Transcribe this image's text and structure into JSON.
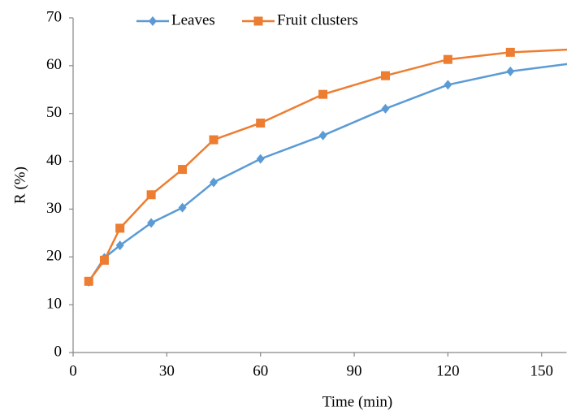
{
  "chart_data": {
    "type": "line",
    "x_label": "Time (min)",
    "y_label": "R (%)",
    "x": [
      5,
      10,
      15,
      25,
      35,
      45,
      60,
      80,
      100,
      120,
      140,
      160
    ],
    "series": [
      {
        "name": "Leaves",
        "color": "#5b9bd5",
        "marker": "diamond",
        "values": [
          14.8,
          19.8,
          22.4,
          27.1,
          30.3,
          35.6,
          40.5,
          45.4,
          51,
          56,
          58.8,
          60.5
        ]
      },
      {
        "name": "Fruit clusters",
        "color": "#ed7d31",
        "marker": "square",
        "values": [
          14.9,
          19.3,
          26,
          33,
          38.3,
          44.5,
          48,
          54,
          57.9,
          61.3,
          62.8,
          63.4
        ]
      }
    ],
    "xlim": [
      0,
      158
    ],
    "xticks": [
      0,
      30,
      60,
      90,
      120,
      150
    ],
    "ylim": [
      0,
      70
    ],
    "yticks": [
      0,
      10,
      20,
      30,
      40,
      50,
      60,
      70
    ],
    "legend": "top"
  }
}
